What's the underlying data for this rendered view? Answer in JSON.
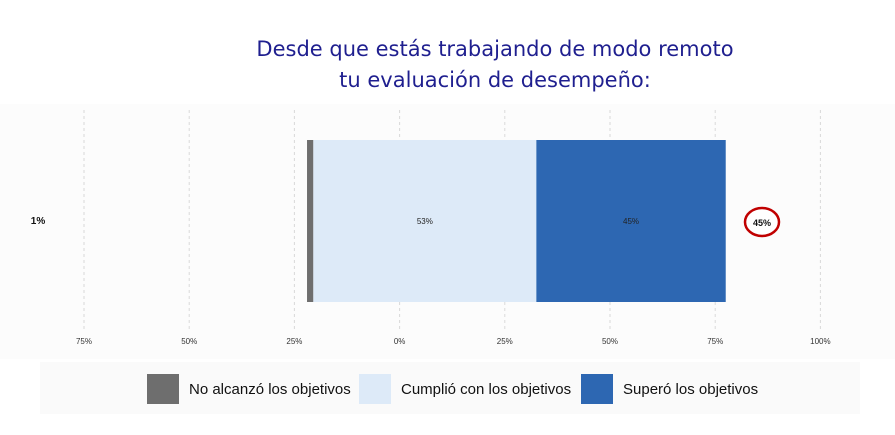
{
  "title_line1": "Desde que estás trabajando de modo remoto",
  "title_line2": "tu evaluación de desempeño:",
  "chart_data": {
    "type": "bar",
    "orientation": "horizontal",
    "stacking": "diverging",
    "categories": [
      ""
    ],
    "series": [
      {
        "name": "No alcanzó los objetivos",
        "values": [
          1
        ],
        "color": "#6e6e6e",
        "label": "1%"
      },
      {
        "name": "Cumplió con los objetivos",
        "values": [
          53
        ],
        "color": "#ddeaf8",
        "label": "53%"
      },
      {
        "name": "Superó los objetivos",
        "values": [
          45
        ],
        "color": "#2d67b2",
        "label": "45%"
      }
    ],
    "x_ticks": [
      "75%",
      "50%",
      "25%",
      "0%",
      "25%",
      "50%",
      "75%",
      "100%"
    ],
    "total_label": "45%",
    "left_label": "1%",
    "grid": true,
    "legend_position": "bottom"
  },
  "legend": [
    {
      "label": "No alcanzó los objetivos",
      "color": "#6e6e6e"
    },
    {
      "label": "Cumplió con los objetivos",
      "color": "#ddeaf8"
    },
    {
      "label": "Superó los objetivos",
      "color": "#2d67b2"
    }
  ]
}
